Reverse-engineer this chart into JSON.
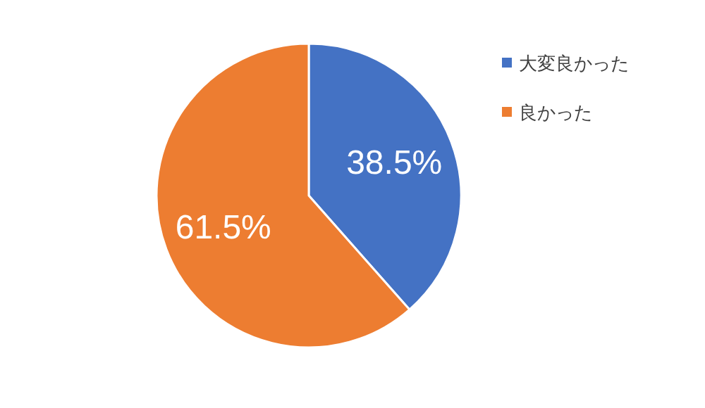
{
  "chart_data": {
    "type": "pie",
    "categories": [
      "大変良かった",
      "良かった"
    ],
    "values": [
      38.5,
      61.5
    ],
    "colors": [
      "#4472c4",
      "#ed7d31"
    ],
    "value_labels": [
      "38.5%",
      "61.5%"
    ],
    "legend": "top right"
  }
}
